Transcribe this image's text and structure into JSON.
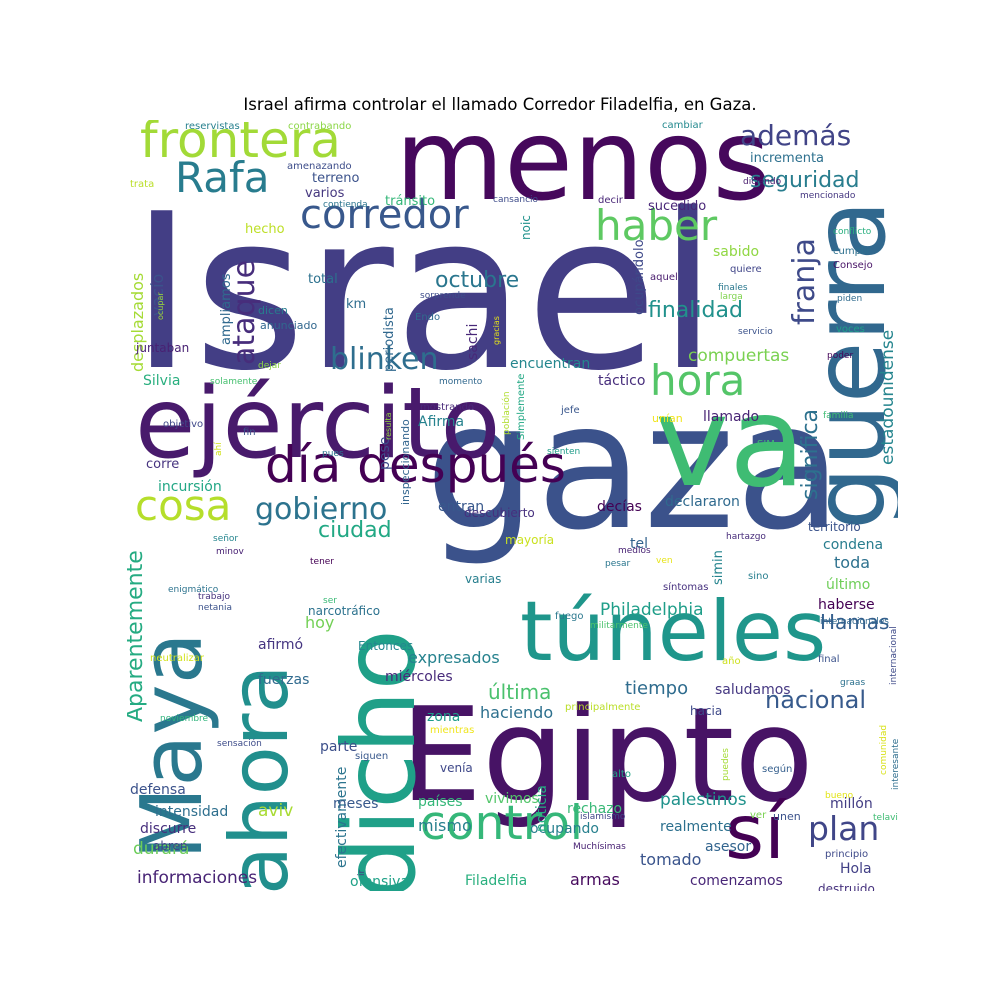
{
  "title": "Israel afirma controlar el llamado Corredor Filadelfia, en Gaza.",
  "words": [
    {
      "text": "Israel",
      "color": "#433e85"
    },
    {
      "text": "gaza",
      "color": "#3b528b"
    },
    {
      "text": "menos",
      "color": "#46085c"
    },
    {
      "text": "va",
      "color": "#3fbc73"
    },
    {
      "text": "Egipto",
      "color": "#471365"
    },
    {
      "text": "ejército",
      "color": "#481a6c"
    },
    {
      "text": "guerra",
      "color": "#31688e"
    },
    {
      "text": "dicho",
      "color": "#1fa088"
    },
    {
      "text": "túneles",
      "color": "#1f968b"
    },
    {
      "text": "Maya",
      "color": "#2a788e"
    },
    {
      "text": "ahora",
      "color": "#218f8d"
    },
    {
      "text": "sí",
      "color": "#440154"
    },
    {
      "text": "día después",
      "color": "#440154"
    },
    {
      "text": "frontera",
      "color": "#a2da37"
    },
    {
      "text": "control",
      "color": "#35b779"
    },
    {
      "text": "Rafa",
      "color": "#287c8e"
    },
    {
      "text": "corredor",
      "color": "#38588c"
    },
    {
      "text": "haber",
      "color": "#5ec962"
    },
    {
      "text": "hora",
      "color": "#54c568"
    },
    {
      "text": "cosa",
      "color": "#b5de2b"
    },
    {
      "text": "gobierno",
      "color": "#2c738e"
    },
    {
      "text": "blinken",
      "color": "#2e6e8e"
    },
    {
      "text": "además",
      "color": "#414487"
    },
    {
      "text": "seguridad",
      "color": "#287d8e"
    },
    {
      "text": "plan",
      "color": "#404688"
    },
    {
      "text": "ataque",
      "color": "#472d7b"
    },
    {
      "text": "franja",
      "color": "#3e4a89"
    },
    {
      "text": "significa",
      "color": "#2d718e"
    },
    {
      "text": "nacional",
      "color": "#375a8c"
    },
    {
      "text": "finalidad",
      "color": "#21918c"
    },
    {
      "text": "octubre",
      "color": "#2a768e"
    },
    {
      "text": "ciudad",
      "color": "#22a884"
    },
    {
      "text": "Aparentemente",
      "color": "#25ab82"
    },
    {
      "text": "compuertas",
      "color": "#7ad151"
    },
    {
      "text": "estadounidense",
      "color": "#25858e"
    },
    {
      "text": "Hamas",
      "color": "#355f8d"
    },
    {
      "text": "Philadelphia",
      "color": "#1f9e89"
    },
    {
      "text": "desplazados",
      "color": "#a5db36"
    },
    {
      "text": "vacío",
      "color": "#3b528b"
    },
    {
      "text": "durará",
      "color": "#6ccd5a"
    },
    {
      "text": "informaciones",
      "color": "#482475"
    },
    {
      "text": "tiempo",
      "color": "#2f6c8e"
    },
    {
      "text": "última",
      "color": "#4ac16d"
    },
    {
      "text": "expresados",
      "color": "#26828e"
    },
    {
      "text": "mismo",
      "color": "#27808e"
    },
    {
      "text": "palestinos",
      "color": "#20928c"
    },
    {
      "text": "ofensiva",
      "color": "#1fa187"
    },
    {
      "text": "Filadelfia",
      "color": "#2ab07f"
    },
    {
      "text": "armas",
      "color": "#460a5d"
    },
    {
      "text": "comenzamos",
      "color": "#482677"
    },
    {
      "text": "tomado",
      "color": "#3a548c"
    },
    {
      "text": "realmente",
      "color": "#2d708e"
    },
    {
      "text": "millón",
      "color": "#433d84"
    },
    {
      "text": "asesor",
      "color": "#32648e"
    },
    {
      "text": "Hola",
      "color": "#424086"
    },
    {
      "text": "destruido",
      "color": "#46327e"
    },
    {
      "text": "efectivamente",
      "color": "#2b748e"
    },
    {
      "text": "discurre",
      "color": "#472f7d"
    },
    {
      "text": "abren",
      "color": "#414487"
    },
    {
      "text": "defensa",
      "color": "#3b528b"
    },
    {
      "text": "intensidad",
      "color": "#2e6f8e"
    },
    {
      "text": "aviv",
      "color": "#a8db34"
    },
    {
      "text": "meses",
      "color": "#38598c"
    },
    {
      "text": "países",
      "color": "#35b779"
    },
    {
      "text": "rechazo",
      "color": "#39b977"
    },
    {
      "text": "ocupando",
      "color": "#27808e"
    },
    {
      "text": "noticia",
      "color": "#25ac82"
    },
    {
      "text": "vivimos",
      "color": "#52c569"
    },
    {
      "text": "fuerzas",
      "color": "#306a8e"
    },
    {
      "text": "miércoles",
      "color": "#472a7a"
    },
    {
      "text": "afirmó",
      "color": "#453581"
    },
    {
      "text": "Entonces",
      "color": "#24878e"
    },
    {
      "text": "hoy",
      "color": "#73d056"
    },
    {
      "text": "narcotráfico",
      "color": "#2c728e"
    },
    {
      "text": "zona",
      "color": "#1e9b8a"
    },
    {
      "text": "haciendo",
      "color": "#2d708e"
    },
    {
      "text": "parte",
      "color": "#3c4f8a"
    },
    {
      "text": "venía",
      "color": "#3f4889"
    },
    {
      "text": "mientras",
      "color": "#efe51c"
    },
    {
      "text": "siguen",
      "color": "#38588c"
    },
    {
      "text": "saludamos",
      "color": "#453882"
    },
    {
      "text": "hacia",
      "color": "#3e4989"
    },
    {
      "text": "principalmente",
      "color": "#bade28"
    },
    {
      "text": "tel",
      "color": "#33638d"
    },
    {
      "text": "varias",
      "color": "#277f8e"
    },
    {
      "text": "mayoría",
      "color": "#cae11f"
    },
    {
      "text": "simin",
      "color": "#25848e"
    },
    {
      "text": "declararon",
      "color": "#306a8e"
    },
    {
      "text": "decías",
      "color": "#440154"
    },
    {
      "text": "entran",
      "color": "#38588c"
    },
    {
      "text": "descubierto",
      "color": "#46307e"
    },
    {
      "text": "incursión",
      "color": "#22a785"
    },
    {
      "text": "corre",
      "color": "#46337f"
    },
    {
      "text": "Silvia",
      "color": "#29af7f"
    },
    {
      "text": "juntaban",
      "color": "#482173"
    },
    {
      "text": "ampliamos",
      "color": "#30698e"
    },
    {
      "text": "anunciado",
      "color": "#31678e"
    },
    {
      "text": "dicen",
      "color": "#287c8e"
    },
    {
      "text": "total",
      "color": "#2c718e"
    },
    {
      "text": "km",
      "color": "#2e6d8e"
    },
    {
      "text": "periodista",
      "color": "#31688e"
    },
    {
      "text": "sachi",
      "color": "#482878"
    },
    {
      "text": "Endo",
      "color": "#306a8e"
    },
    {
      "text": "encuentran",
      "color": "#24868e"
    },
    {
      "text": "táctico",
      "color": "#472e7c"
    },
    {
      "text": "llamado",
      "color": "#482475"
    },
    {
      "text": "unían",
      "color": "#f1e51d"
    },
    {
      "text": "Afirma",
      "color": "#26828e"
    },
    {
      "text": "pese",
      "color": "#3e4a89"
    },
    {
      "text": "toda",
      "color": "#2d718e"
    },
    {
      "text": "último",
      "color": "#6ece58"
    },
    {
      "text": "condena",
      "color": "#287d8e"
    },
    {
      "text": "territorio",
      "color": "#3a538b"
    },
    {
      "text": "haberse",
      "color": "#440154"
    },
    {
      "text": "incrementa",
      "color": "#2d708e"
    },
    {
      "text": "sucedido",
      "color": "#482677"
    },
    {
      "text": "tránsito",
      "color": "#35b779"
    },
    {
      "text": "terreno",
      "color": "#3b528b"
    },
    {
      "text": "varios",
      "color": "#45377f"
    },
    {
      "text": "hecho",
      "color": "#bddf26"
    },
    {
      "text": "sabido",
      "color": "#90d743"
    },
    {
      "text": "ocupándolo",
      "color": "#3e4989"
    },
    {
      "text": "noic",
      "color": "#20928c"
    },
    {
      "text": "inspeccionando",
      "color": "#32658e"
    },
    {
      "text": "resulta",
      "color": "#95d840"
    },
    {
      "text": "Simplemente",
      "color": "#22a884"
    },
    {
      "text": "población",
      "color": "#b0dd2f"
    },
    {
      "text": "reservistas",
      "color": "#27808e"
    },
    {
      "text": "contrabando",
      "color": "#8bd646"
    },
    {
      "text": "cambiar",
      "color": "#23898e"
    },
    {
      "text": "amenazando",
      "color": "#3d4d8a"
    },
    {
      "text": "trata",
      "color": "#bade28"
    },
    {
      "text": "contienda",
      "color": "#2b758e"
    },
    {
      "text": "cansancio",
      "color": "#3e4c8a"
    },
    {
      "text": "decir",
      "color": "#482677"
    },
    {
      "text": "diciendo",
      "color": "#481c6e"
    },
    {
      "text": "mencionado",
      "color": "#453781"
    },
    {
      "text": "conflicto",
      "color": "#29af7f"
    },
    {
      "text": "cumplir",
      "color": "#2d708e"
    },
    {
      "text": "Consejo",
      "color": "#481467"
    },
    {
      "text": "quiere",
      "color": "#404588"
    },
    {
      "text": "aquel",
      "color": "#481b6d"
    },
    {
      "text": "finales",
      "color": "#2a788e"
    },
    {
      "text": "larga",
      "color": "#7fd34e"
    },
    {
      "text": "piden",
      "color": "#2f6b8e"
    },
    {
      "text": "servicio",
      "color": "#3b528b"
    },
    {
      "text": "voces",
      "color": "#1f9e89"
    },
    {
      "text": "poder",
      "color": "#450559"
    },
    {
      "text": "familia",
      "color": "#3fbc73"
    },
    {
      "text": "sorprende",
      "color": "#3d4d8a"
    },
    {
      "text": "ocupar",
      "color": "#a0da39"
    },
    {
      "text": "gracias",
      "color": "#e5e419"
    },
    {
      "text": "dejar",
      "color": "#8bd646"
    },
    {
      "text": "solamente",
      "color": "#46c06f"
    },
    {
      "text": "momento",
      "color": "#31688e"
    },
    {
      "text": "mostrando",
      "color": "#482979"
    },
    {
      "text": "jefe",
      "color": "#39568c"
    },
    {
      "text": "objetivo",
      "color": "#3f4889"
    },
    {
      "text": "fin",
      "color": "#3b528b"
    },
    {
      "text": "ahí",
      "color": "#d0e11c"
    },
    {
      "text": "pues",
      "color": "#2c738e"
    },
    {
      "text": "SIM",
      "color": "#3fbc73"
    },
    {
      "text": "sienten",
      "color": "#1e9c89"
    },
    {
      "text": "hartazgo",
      "color": "#472c7a"
    },
    {
      "text": "medios",
      "color": "#482374"
    },
    {
      "text": "pesar",
      "color": "#2a768e"
    },
    {
      "text": "sino",
      "color": "#277e8e"
    },
    {
      "text": "ven",
      "color": "#e7e419"
    },
    {
      "text": "síntomas",
      "color": "#46307e"
    },
    {
      "text": "señor",
      "color": "#25858e"
    },
    {
      "text": "minov",
      "color": "#482173"
    },
    {
      "text": "tener",
      "color": "#440154"
    },
    {
      "text": "enigmático",
      "color": "#2c738e"
    },
    {
      "text": "trabajo",
      "color": "#46327e"
    },
    {
      "text": "netania",
      "color": "#3b528b"
    },
    {
      "text": "ser",
      "color": "#3aba76"
    },
    {
      "text": "fuego",
      "color": "#2a788e"
    },
    {
      "text": "militarmente",
      "color": "#4ac16d"
    },
    {
      "text": "internacionales",
      "color": "#31688e"
    },
    {
      "text": "internacional",
      "color": "#3e4a89"
    },
    {
      "text": "neutralizar",
      "color": "#d2e21b"
    },
    {
      "text": "año",
      "color": "#cde11d"
    },
    {
      "text": "final",
      "color": "#3b528b"
    },
    {
      "text": "graas",
      "color": "#2c718e"
    },
    {
      "text": "noviembre",
      "color": "#2fb47c"
    },
    {
      "text": "sensación",
      "color": "#3e4c8a"
    },
    {
      "text": "comunidad",
      "color": "#d8e219"
    },
    {
      "text": "interesante",
      "color": "#2e6e8e"
    },
    {
      "text": "puedes",
      "color": "#a5db36"
    },
    {
      "text": "según",
      "color": "#355f8d"
    },
    {
      "text": "alto",
      "color": "#20a386"
    },
    {
      "text": "bueno",
      "color": "#e2e418"
    },
    {
      "text": "islamismo",
      "color": "#404588"
    },
    {
      "text": "ver",
      "color": "#7ad151"
    },
    {
      "text": "unen",
      "color": "#3b528b"
    },
    {
      "text": "telaviv",
      "color": "#3fbc73"
    },
    {
      "text": "principio",
      "color": "#3e4989"
    },
    {
      "text": "Muchísimas",
      "color": "#482173"
    },
    {
      "text": "ir",
      "color": "#46327e"
    }
  ]
}
